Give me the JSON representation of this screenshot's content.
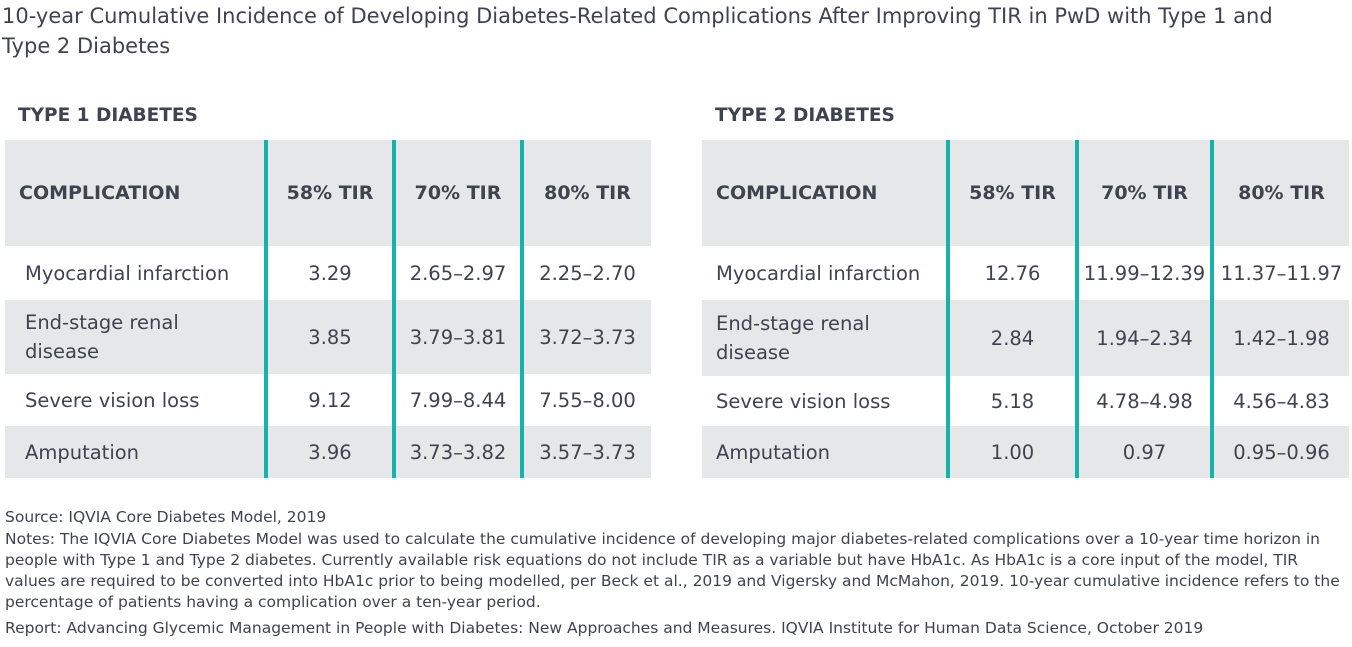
{
  "title": "10-year Cumulative Incidence of Developing Diabetes-Related Complications After Improving TIR in PwD with Type 1 and Type 2 Diabetes",
  "colors": {
    "divider": "#17b3aa",
    "band": "#e6e7e9",
    "text": "#3d4450"
  },
  "chart_data": [
    {
      "type": "table",
      "title": "TYPE 1 DIABETES",
      "columns": [
        "COMPLICATION",
        "58% TIR",
        "70% TIR",
        "80% TIR"
      ],
      "rows": [
        [
          "Myocardial infarction",
          "3.29",
          "2.65–2.97",
          "2.25–2.70"
        ],
        [
          "End-stage renal disease",
          "3.85",
          "3.79–3.81",
          "3.72–3.73"
        ],
        [
          "Severe vision loss",
          "9.12",
          "7.99–8.44",
          "7.55–8.00"
        ],
        [
          "Amputation",
          "3.96",
          "3.73–3.82",
          "3.57–3.73"
        ]
      ]
    },
    {
      "type": "table",
      "title": "TYPE 2 DIABETES",
      "columns": [
        "COMPLICATION",
        "58% TIR",
        "70% TIR",
        "80% TIR"
      ],
      "rows": [
        [
          "Myocardial infarction",
          "12.76",
          "11.99–12.39",
          "11.37–11.97"
        ],
        [
          "End-stage renal disease",
          "2.84",
          "1.94–2.34",
          "1.42–1.98"
        ],
        [
          "Severe vision loss",
          "5.18",
          "4.78–4.98",
          "4.56–4.83"
        ],
        [
          "Amputation",
          "1.00",
          "0.97",
          "0.95–0.96"
        ]
      ]
    }
  ],
  "footer": {
    "source": "Source: IQVIA Core Diabetes Model, 2019",
    "notes": "Notes: The IQVIA Core Diabetes Model was used to calculate the cumulative incidence of developing major diabetes-related complications over a 10-year time horizon in people with Type 1 and Type 2 diabetes. Currently available risk equations do not include TIR as a variable but have HbA1c. As HbA1c is a core input of the model, TIR values are required to be converted into HbA1c prior to being modelled, per Beck et al., 2019 and Vigersky and McMahon, 2019. 10-year cumulative incidence refers to the percentage of patients having a complication over a ten-year period.",
    "report": "Report: Advancing Glycemic Management in People with Diabetes: New Approaches and Measures. IQVIA Institute for Human Data Science, October 2019"
  }
}
